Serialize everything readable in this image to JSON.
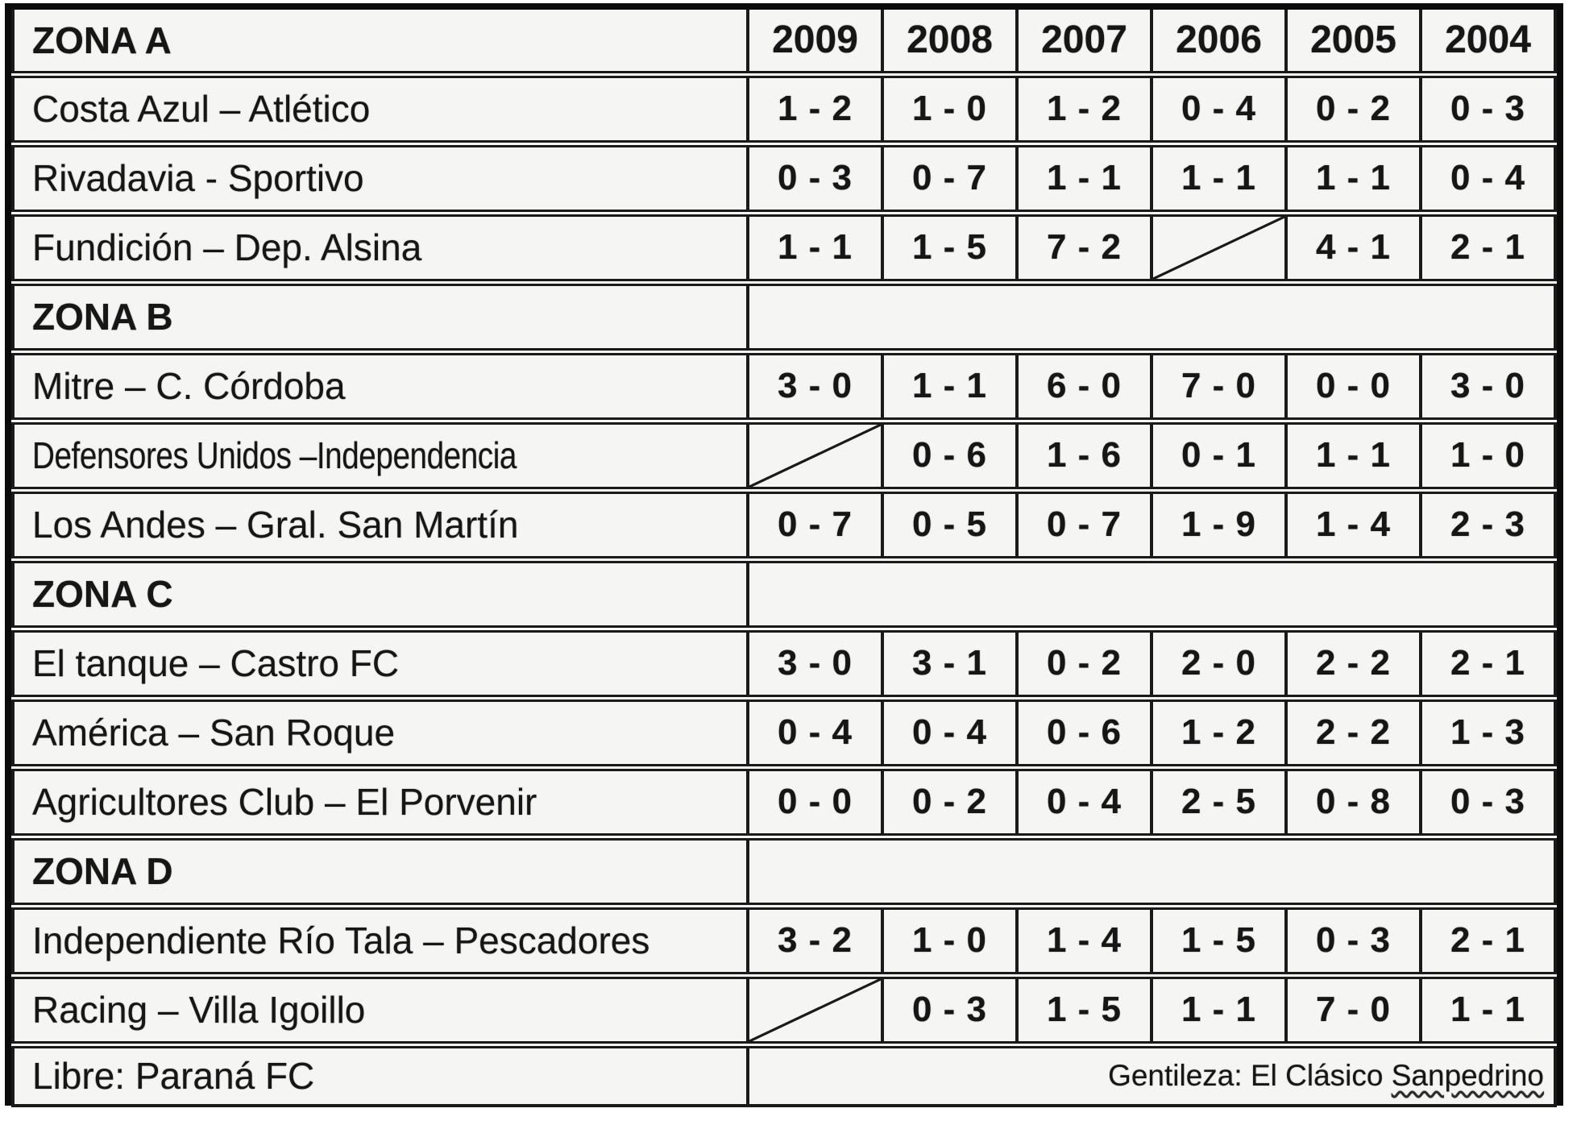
{
  "colors": {
    "cell_bg": "#f5f5f3",
    "border": "#1a1a1a",
    "text": "#161616",
    "page_bg": "#ffffff"
  },
  "table": {
    "header": {
      "label": "ZONA A",
      "years": [
        "2009",
        "2008",
        "2007",
        "2006",
        "2005",
        "2004"
      ]
    },
    "groups": [
      {
        "label": null,
        "rows": [
          {
            "name": "Costa Azul – Atlético",
            "scores": [
              "1 - 2",
              "1 - 0",
              "1 - 2",
              "0 - 4",
              "0 - 2",
              "0 - 3"
            ]
          },
          {
            "name": "Rivadavia - Sportivo",
            "scores": [
              "0 - 3",
              "0 - 7",
              "1 - 1",
              "1 - 1",
              "1 - 1",
              "0 - 4"
            ]
          },
          {
            "name": "Fundición – Dep. Alsina",
            "scores": [
              "1 - 1",
              "1 - 5",
              "7 - 2",
              null,
              "4 - 1",
              "2 - 1"
            ]
          }
        ]
      },
      {
        "label": "ZONA B",
        "rows": [
          {
            "name": "Mitre – C. Córdoba",
            "scores": [
              "3 - 0",
              "1 - 1",
              "6 - 0",
              "7 - 0",
              "0 - 0",
              "3 - 0"
            ]
          },
          {
            "name": "Defensores Unidos –Independencia",
            "narrow": true,
            "scores": [
              null,
              "0 - 6",
              "1 - 6",
              "0 - 1",
              "1 - 1",
              "1 - 0"
            ]
          },
          {
            "name": "Los Andes – Gral. San Martín",
            "scores": [
              "0 - 7",
              "0 - 5",
              "0 - 7",
              "1 - 9",
              "1 - 4",
              "2 - 3"
            ]
          }
        ]
      },
      {
        "label": "ZONA C",
        "rows": [
          {
            "name": "El tanque – Castro FC",
            "scores": [
              "3 - 0",
              "3 - 1",
              "0 - 2",
              "2 - 0",
              "2 - 2",
              "2 - 1"
            ]
          },
          {
            "name": "América – San Roque",
            "scores": [
              "0 - 4",
              "0 - 4",
              "0 - 6",
              "1 - 2",
              "2 - 2",
              "1 - 3"
            ]
          },
          {
            "name": "Agricultores Club – El Porvenir",
            "scores": [
              "0 - 0",
              "0 - 2",
              "0 - 4",
              "2 - 5",
              "0 - 8",
              "0 - 3"
            ]
          }
        ]
      },
      {
        "label": "ZONA D",
        "rows": [
          {
            "name": "Independiente Río Tala – Pescadores",
            "scores": [
              "3 - 2",
              "1 - 0",
              "1 - 4",
              "1 - 5",
              "0 - 3",
              "2 - 1"
            ]
          },
          {
            "name": "Racing – Villa Igoillo",
            "scores": [
              null,
              "0 - 3",
              "1 - 5",
              "1 - 1",
              "7 - 0",
              "1 - 1"
            ]
          }
        ]
      }
    ],
    "footer": {
      "libre_label": "Libre: Paraná FC",
      "credit_prefix": "Gentileza: El Clásico ",
      "credit_word": "Sanpedrino"
    }
  }
}
